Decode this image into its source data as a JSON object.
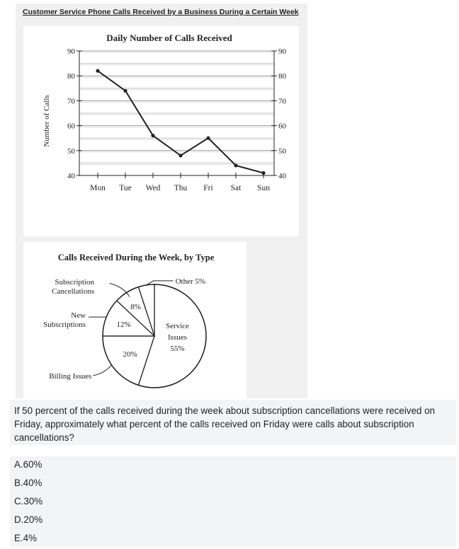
{
  "figure_title": "Customer Service Phone Calls Received by a Business During a Certain Week",
  "chart_data": [
    {
      "type": "line",
      "title": "Daily Number of Calls Received",
      "xlabel": "",
      "ylabel": "Number of Calls",
      "categories": [
        "Mon",
        "Tue",
        "Wed",
        "Thu",
        "Fri",
        "Sat",
        "Sun"
      ],
      "series": [
        {
          "values": [
            82,
            74,
            56,
            48,
            55,
            44,
            41
          ]
        }
      ],
      "ylim": [
        40,
        90
      ],
      "yticks": [
        "40",
        "50",
        "60",
        "70",
        "80",
        "90"
      ],
      "y_axis_right_duplicate": true,
      "grid": true,
      "color": "#222222"
    },
    {
      "type": "pie",
      "title": "Calls Received During the Week, by Type",
      "slices": [
        {
          "name": "Service Issues",
          "value": 55,
          "label_lines": [
            "Service",
            "Issues",
            "55%"
          ],
          "value_label": "55%",
          "callout": ""
        },
        {
          "name": "Billing Issues",
          "value": 20,
          "value_label": "20%",
          "callout": "Billing Issues"
        },
        {
          "name": "New Subscriptions",
          "value": 12,
          "value_label": "12%",
          "callout_lines": [
            "New",
            "Subscriptions"
          ]
        },
        {
          "name": "Subscription Cancellations",
          "value": 8,
          "value_label": "8%",
          "callout_lines": [
            "Subscription",
            "Cancellations"
          ]
        },
        {
          "name": "Other",
          "value": 5,
          "value_label": "",
          "callout": "Other 5%"
        }
      ]
    }
  ],
  "question": {
    "text": "If 50 percent of the calls received during the week about subscription cancellations were received on Friday, approximately what percent of the calls received on Friday were calls about subscription cancellations?"
  },
  "options": [
    {
      "label": "A.60%"
    },
    {
      "label": "B.40%"
    },
    {
      "label": "C.30%"
    },
    {
      "label": "D.20%"
    },
    {
      "label": "E.4%"
    }
  ]
}
